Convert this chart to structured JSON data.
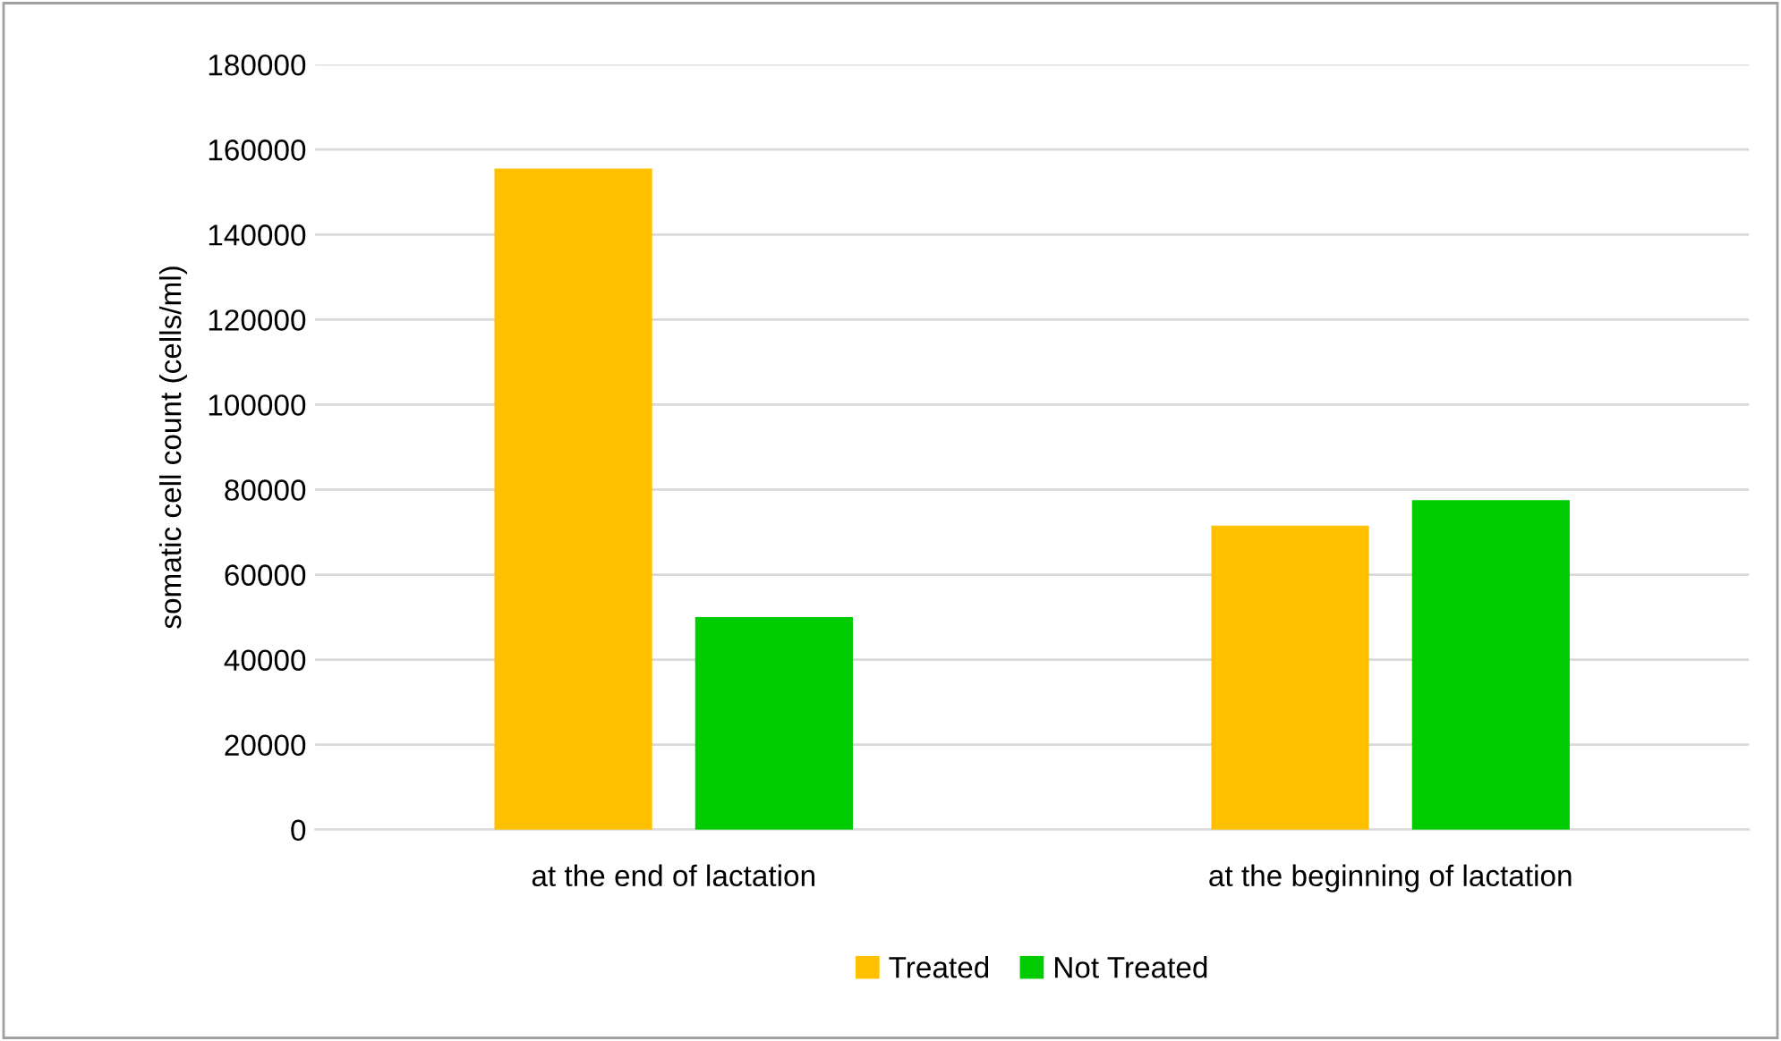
{
  "chart_data": {
    "type": "bar",
    "ylabel": "somatic cell count (cells/ml)",
    "categories": [
      "at the end of lactation",
      "at the beginning of lactation"
    ],
    "series": [
      {
        "name": "Treated",
        "color": "#ffc000",
        "values": [
          155500,
          71500
        ]
      },
      {
        "name": "Not Treated",
        "color": "#00cc00",
        "values": [
          50000,
          77500
        ]
      }
    ],
    "ylim": [
      0,
      180000
    ],
    "yticks": [
      0,
      20000,
      40000,
      60000,
      80000,
      100000,
      120000,
      140000,
      160000,
      180000
    ],
    "grid": "y",
    "legend": "bottom"
  }
}
